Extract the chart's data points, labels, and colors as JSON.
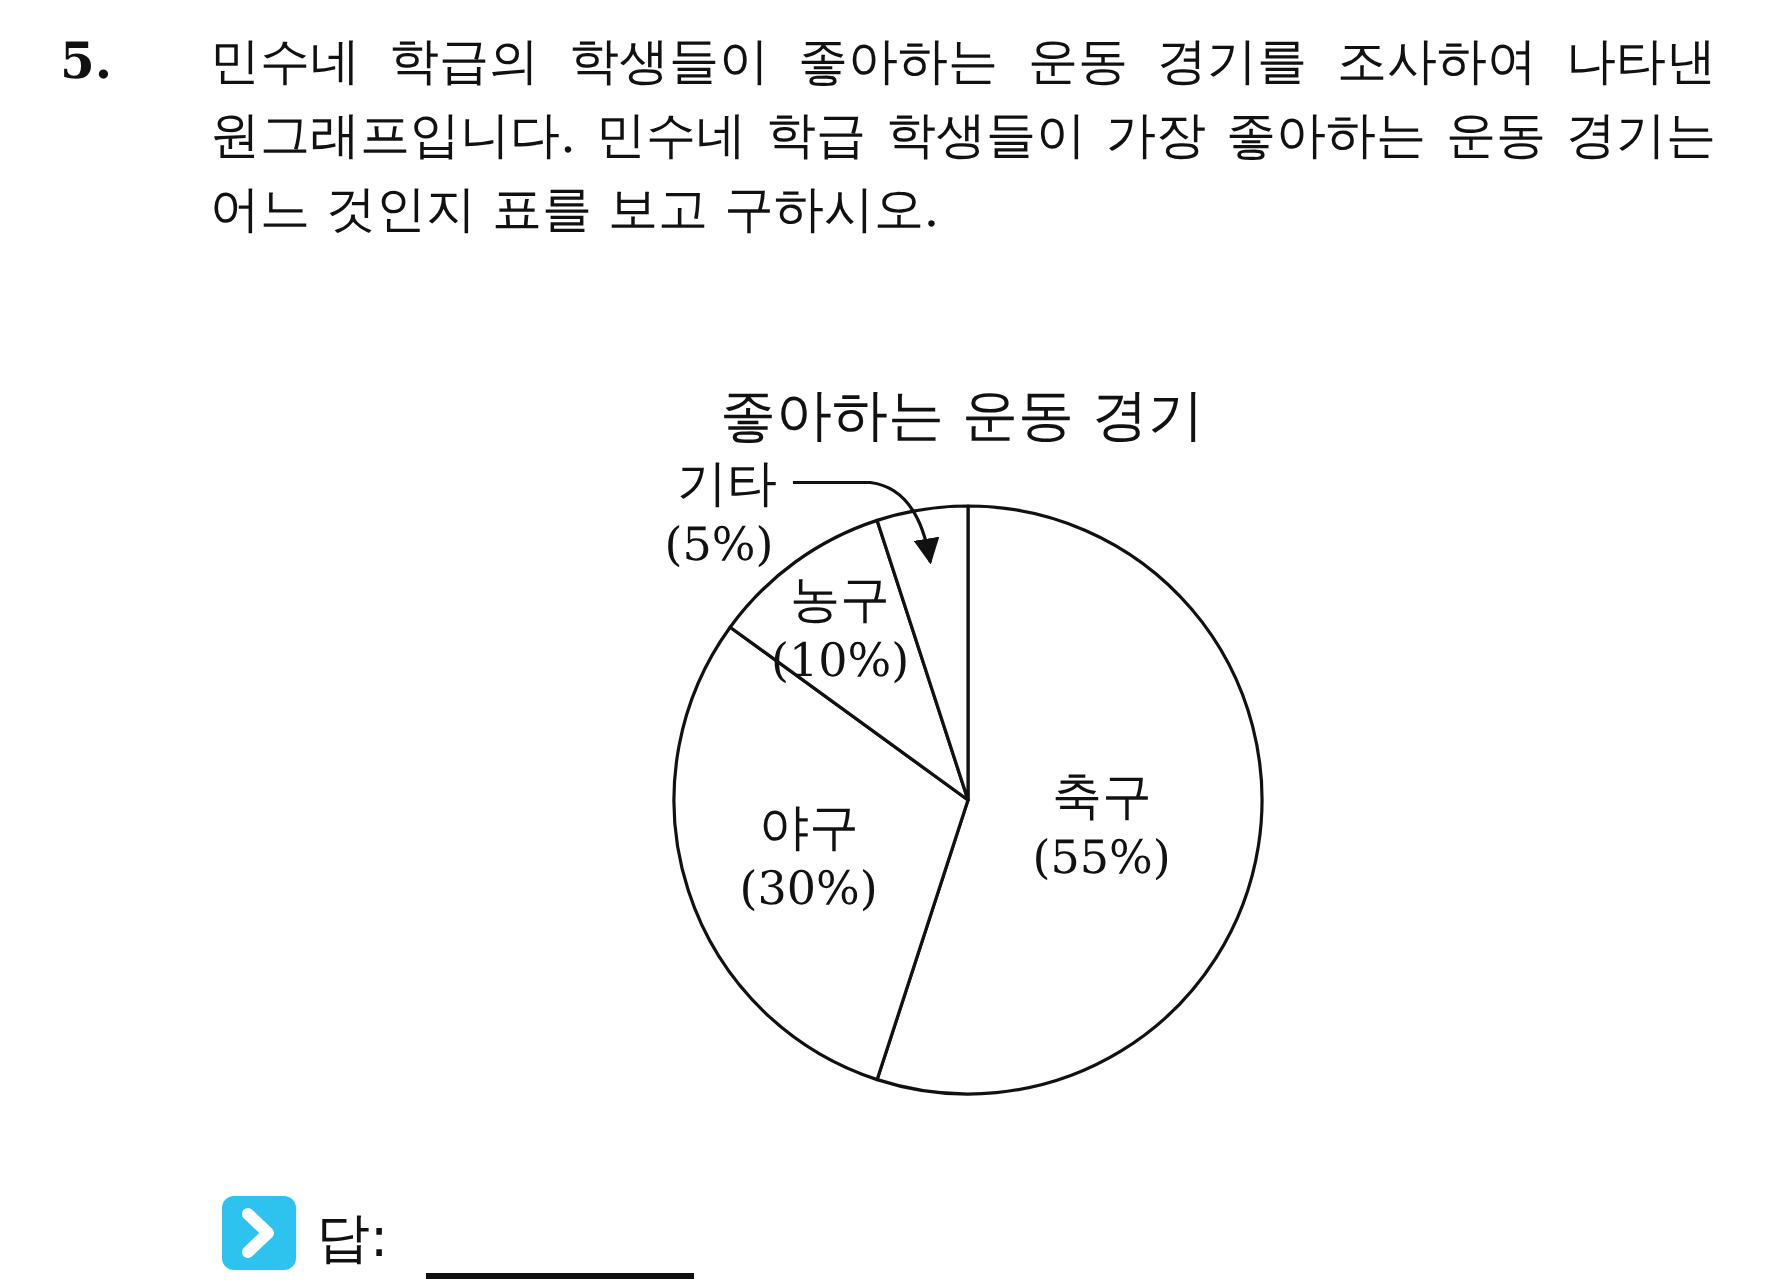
{
  "chart_data": {
    "type": "pie",
    "title": "좋아하는 운동 경기",
    "categories": [
      "축구",
      "야구",
      "농구",
      "기타"
    ],
    "values": [
      55,
      30,
      10,
      5
    ],
    "value_labels": [
      "(55%)",
      "(30%)",
      "(10%)",
      "(5%)"
    ],
    "colors": [
      "#ffffff",
      "#ffffff",
      "#ffffff",
      "#ffffff"
    ],
    "annotations": [
      "5.",
      "민수네 학급의 학생들이 좋아하는 운동 경기를 조사하여 나타낸 원그래프입니다. 민수네 학급 학생들이 가장 좋아하는 운동 경기는 어느 것인지 표를 보고 구하시오.",
      "답:"
    ]
  }
}
